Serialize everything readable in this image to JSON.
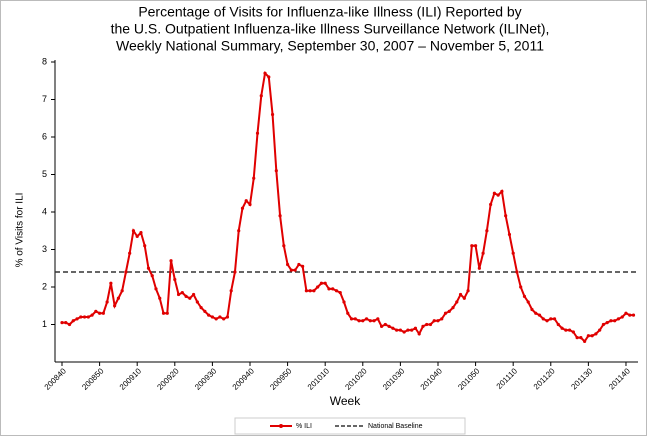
{
  "chart_data": {
    "type": "line",
    "title": [
      "Percentage of Visits for Influenza-like Illness (ILI) Reported by",
      "the U.S. Outpatient Influenza-like Illness Surveillance Network (ILINet),",
      "Weekly National Summary, September 30, 2007 – November 5, 2011"
    ],
    "x_label": "Week",
    "y_label": "% of Visits for ILI",
    "ylim": [
      0,
      8
    ],
    "yticks": [
      1,
      2,
      3,
      4,
      5,
      6,
      7,
      8
    ],
    "categories": [
      "200840",
      null,
      null,
      null,
      null,
      null,
      null,
      null,
      null,
      null,
      "200850",
      null,
      null,
      null,
      null,
      null,
      null,
      null,
      null,
      null,
      "200910",
      null,
      null,
      null,
      null,
      null,
      null,
      null,
      null,
      null,
      "200920",
      null,
      null,
      null,
      null,
      null,
      null,
      null,
      null,
      null,
      "200930",
      null,
      null,
      null,
      null,
      null,
      null,
      null,
      null,
      null,
      "200940",
      null,
      null,
      null,
      null,
      null,
      null,
      null,
      null,
      null,
      "200950",
      null,
      null,
      null,
      null,
      null,
      null,
      null,
      null,
      null,
      "201010",
      null,
      null,
      null,
      null,
      null,
      null,
      null,
      null,
      null,
      "201020",
      null,
      null,
      null,
      null,
      null,
      null,
      null,
      null,
      null,
      "201030",
      null,
      null,
      null,
      null,
      null,
      null,
      null,
      null,
      null,
      "201040",
      null,
      null,
      null,
      null,
      null,
      null,
      null,
      null,
      null,
      "201050",
      null,
      null,
      null,
      null,
      null,
      null,
      null,
      null,
      null,
      "201110",
      null,
      null,
      null,
      null,
      null,
      null,
      null,
      null,
      null,
      "201120",
      null,
      null,
      null,
      null,
      null,
      null,
      null,
      null,
      null,
      "201130",
      null,
      null,
      null,
      null,
      null,
      null,
      null,
      null,
      null,
      "201140",
      null,
      null
    ],
    "series": [
      {
        "name": "% ILI",
        "color": "#e00000",
        "values": [
          1.05,
          1.05,
          1.0,
          1.1,
          1.15,
          1.2,
          1.2,
          1.2,
          1.25,
          1.35,
          1.3,
          1.3,
          1.6,
          2.1,
          1.5,
          1.7,
          1.9,
          2.4,
          2.9,
          3.5,
          3.35,
          3.45,
          3.1,
          2.5,
          2.3,
          1.95,
          1.7,
          1.3,
          1.3,
          2.7,
          2.2,
          1.8,
          1.85,
          1.75,
          1.7,
          1.8,
          1.6,
          1.45,
          1.35,
          1.25,
          1.2,
          1.15,
          1.2,
          1.15,
          1.2,
          1.9,
          2.4,
          3.5,
          4.1,
          4.3,
          4.2,
          4.9,
          6.1,
          7.1,
          7.7,
          7.6,
          6.6,
          5.1,
          3.9,
          3.1,
          2.6,
          2.45,
          2.45,
          2.6,
          2.55,
          1.9,
          1.9,
          1.9,
          2.0,
          2.1,
          2.1,
          1.95,
          1.95,
          1.9,
          1.85,
          1.6,
          1.3,
          1.15,
          1.15,
          1.1,
          1.1,
          1.15,
          1.1,
          1.1,
          1.15,
          0.95,
          1.0,
          0.95,
          0.9,
          0.85,
          0.85,
          0.8,
          0.85,
          0.85,
          0.9,
          0.75,
          0.95,
          1.0,
          1.0,
          1.1,
          1.1,
          1.15,
          1.3,
          1.35,
          1.45,
          1.6,
          1.8,
          1.7,
          1.9,
          3.1,
          3.1,
          2.5,
          2.9,
          3.5,
          4.2,
          4.5,
          4.45,
          4.55,
          3.9,
          3.4,
          2.9,
          2.4,
          2.0,
          1.75,
          1.6,
          1.4,
          1.3,
          1.25,
          1.15,
          1.1,
          1.15,
          1.15,
          1.0,
          0.9,
          0.85,
          0.85,
          0.8,
          0.65,
          0.65,
          0.55,
          0.7,
          0.7,
          0.75,
          0.85,
          1.0,
          1.05,
          1.1,
          1.1,
          1.15,
          1.2,
          1.3,
          1.25,
          1.25
        ]
      }
    ],
    "baseline": {
      "name": "National Baseline",
      "value": 2.4,
      "color": "#333333"
    }
  }
}
